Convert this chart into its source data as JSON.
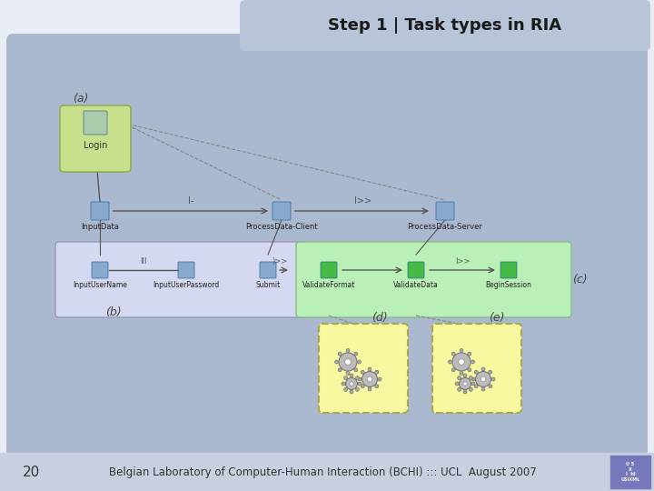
{
  "bg_color": "#dde4f0",
  "slide_bg": "#e8ecf5",
  "title_text": "Step 1 | Task types in RIA",
  "title_box_color": "#b8c4d8",
  "title_text_color": "#1a1a1a",
  "footer_text": "Belgian Laboratory of Computer-Human Interaction (BCHI) ::: UCL  August 2007",
  "footer_number": "20",
  "footer_bg": "#c8d0e0",
  "main_bg": "#aab8d0",
  "label_a": "(a)",
  "label_b": "(b)",
  "label_c": "(c)",
  "label_d": "(d)",
  "label_e": "(e)",
  "login_box_color": "#c8e08c",
  "login_label": "Login",
  "input_data_label": "InputData",
  "process_client_label": "ProcessData-Client",
  "process_server_label": "ProcessData-Server",
  "group_b_color": "#d4d8f0",
  "group_c_color": "#b8f0b8",
  "input_username_label": "InputUserName",
  "input_password_label": "InputUserPassword",
  "submit_label": "Submit",
  "validate_format_label": "ValidateFormat",
  "validate_data_label": "ValidateData",
  "begin_session_label": "BeginSession",
  "gear_box_color": "#f8f8a0",
  "connector_color": "#555555",
  "dashed_color": "#888888"
}
